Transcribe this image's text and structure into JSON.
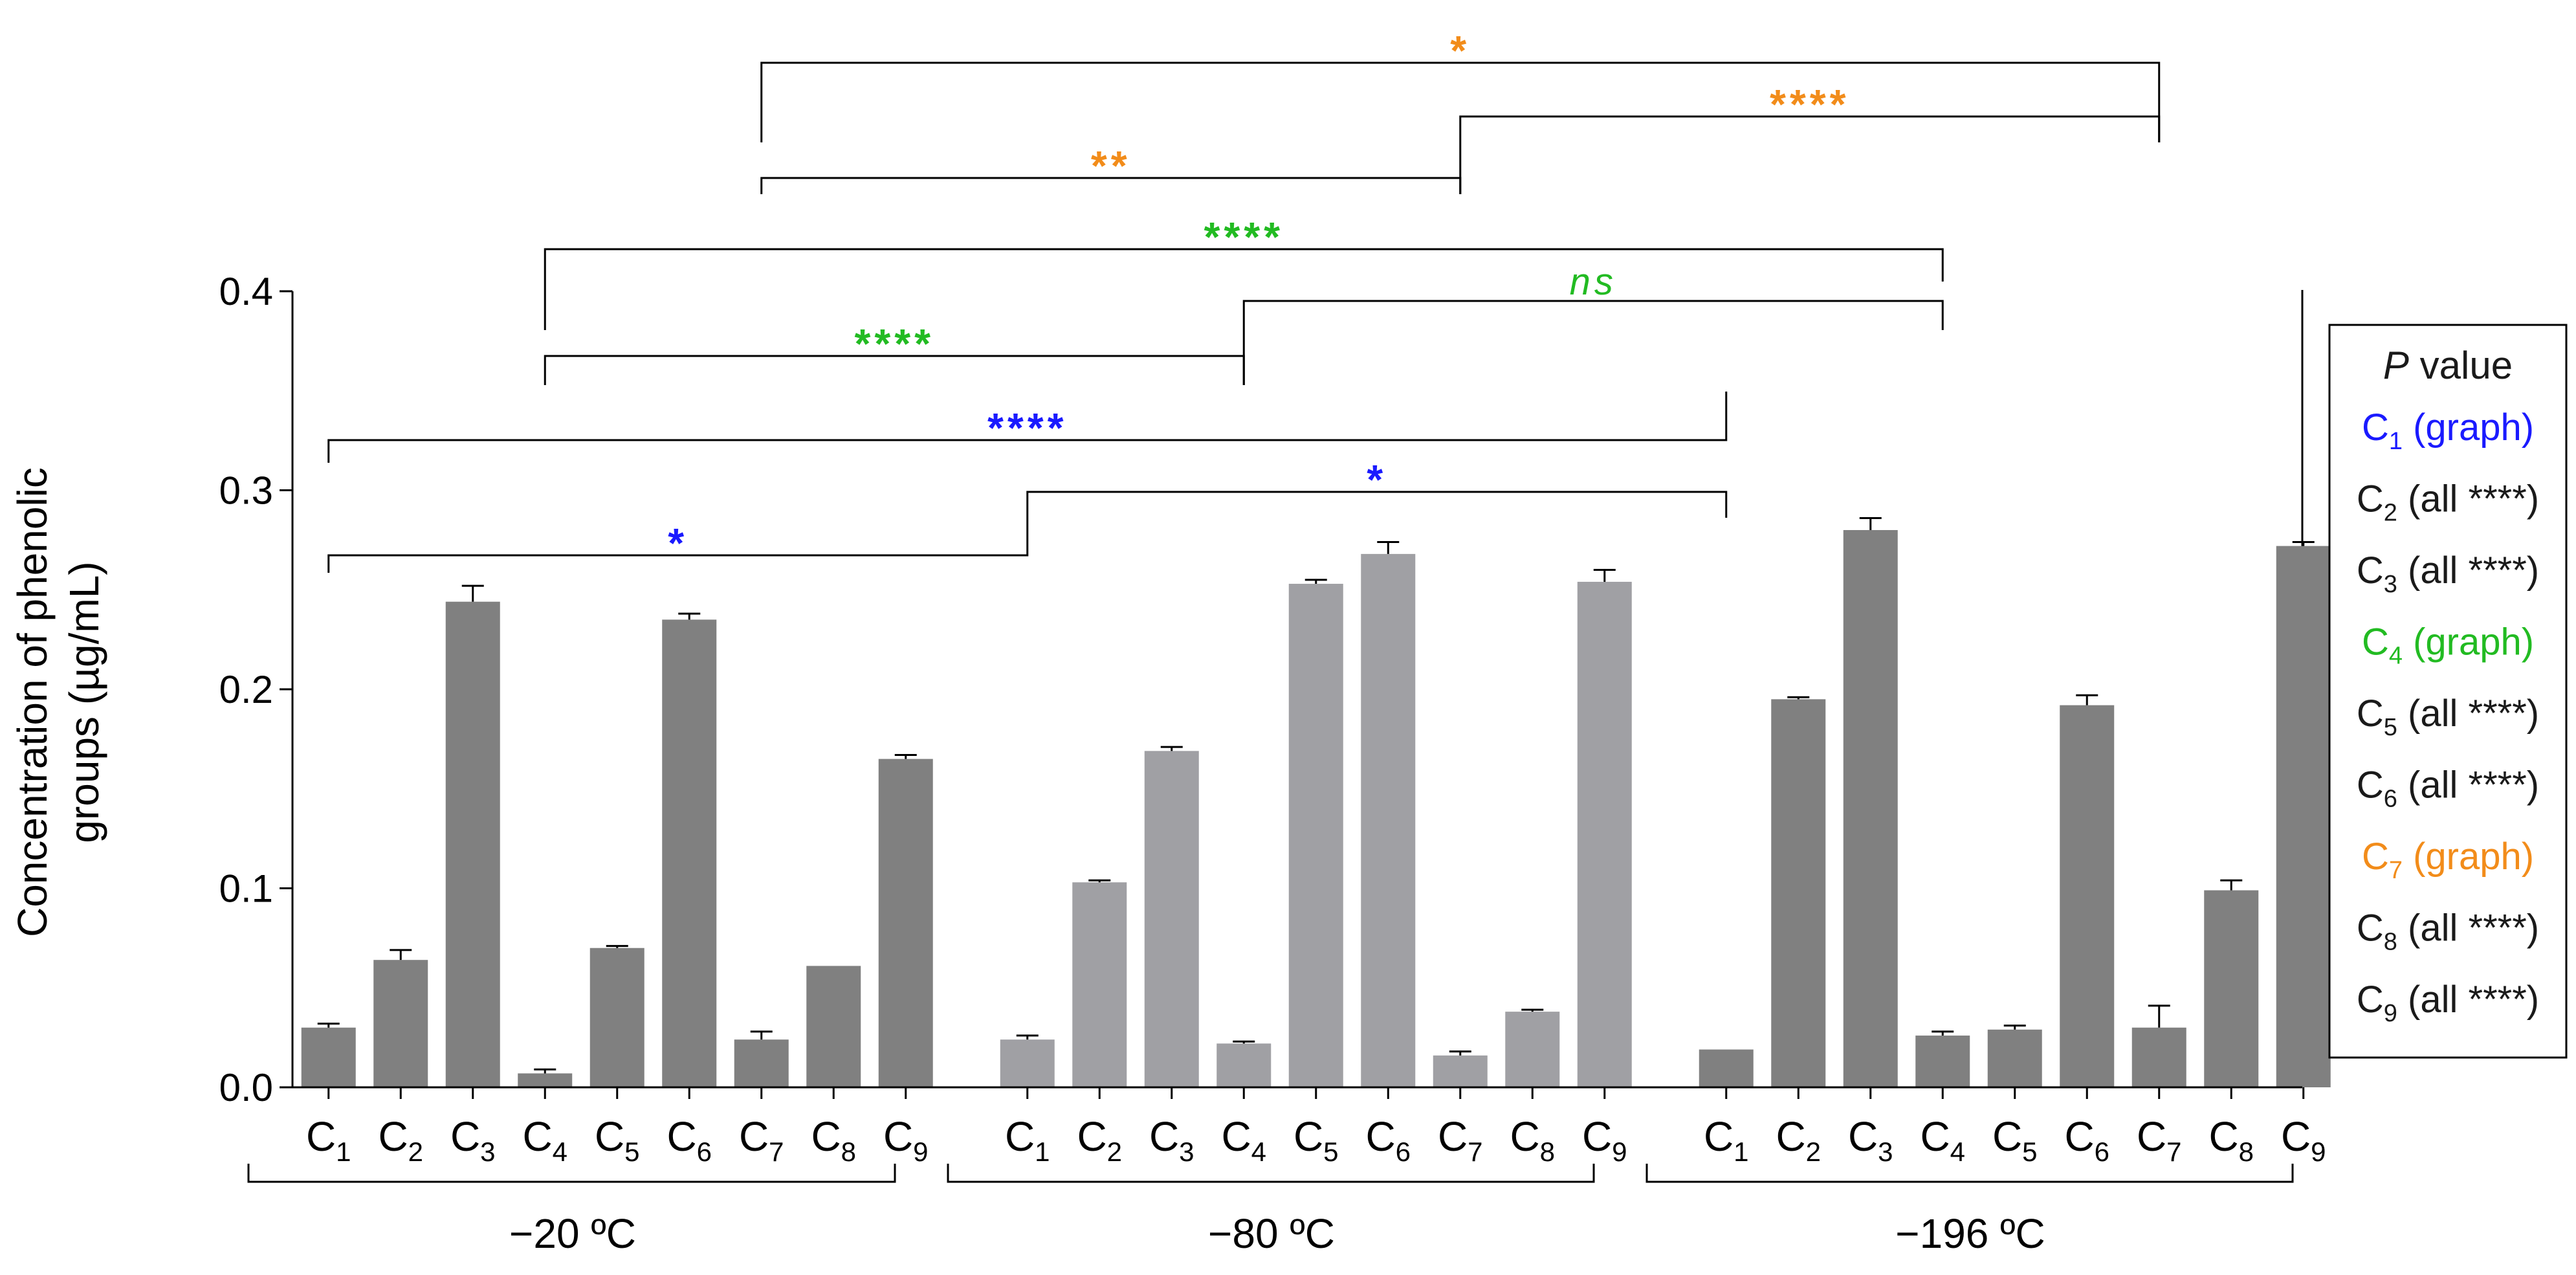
{
  "chart_data": {
    "type": "bar",
    "ylabel_lines": [
      "Concentration of phenolic",
      "groups (µg/mL)"
    ],
    "ylim": [
      0,
      0.4
    ],
    "yticks": [
      "0.0",
      "0.1",
      "0.2",
      "0.3",
      "0.4"
    ],
    "categories": [
      "C1",
      "C2",
      "C3",
      "C4",
      "C5",
      "C6",
      "C7",
      "C8",
      "C9"
    ],
    "groups": [
      {
        "name": "−20 ºC",
        "color": "#808080",
        "values": [
          0.03,
          0.064,
          0.244,
          0.007,
          0.07,
          0.235,
          0.024,
          0.061,
          0.165
        ],
        "errors": [
          0.002,
          0.005,
          0.008,
          0.002,
          0.001,
          0.003,
          0.004,
          0.0,
          0.002
        ]
      },
      {
        "name": "−80 ºC",
        "color": "#a0a0a4",
        "values": [
          0.024,
          0.103,
          0.169,
          0.022,
          0.253,
          0.268,
          0.016,
          0.038,
          0.254
        ],
        "errors": [
          0.002,
          0.001,
          0.002,
          0.001,
          0.002,
          0.006,
          0.002,
          0.001,
          0.006
        ]
      },
      {
        "name": "−196 ºC",
        "color": "#808080",
        "values": [
          0.019,
          0.195,
          0.28,
          0.026,
          0.029,
          0.192,
          0.03,
          0.099,
          0.272
        ],
        "errors": [
          0.0,
          0.001,
          0.006,
          0.002,
          0.002,
          0.005,
          0.011,
          0.005,
          0.002
        ]
      }
    ],
    "significance": [
      {
        "from_group": 0,
        "to_group": 1,
        "category": 0,
        "label": "*",
        "color": "#1a1aff",
        "italic": false
      },
      {
        "from_group": 1,
        "to_group": 2,
        "category": 0,
        "label": "*",
        "color": "#1a1aff",
        "italic": false
      },
      {
        "from_group": 0,
        "to_group": 2,
        "category": 0,
        "label": "****",
        "color": "#1a1aff",
        "italic": false
      },
      {
        "from_group": 0,
        "to_group": 1,
        "category": 3,
        "label": "****",
        "color": "#22bb22",
        "italic": false
      },
      {
        "from_group": 1,
        "to_group": 2,
        "category": 3,
        "label": "ns",
        "color": "#22bb22",
        "italic": true
      },
      {
        "from_group": 0,
        "to_group": 2,
        "category": 3,
        "label": "****",
        "color": "#22bb22",
        "italic": false
      },
      {
        "from_group": 0,
        "to_group": 1,
        "category": 6,
        "label": "**",
        "color": "#f28c1a",
        "italic": false
      },
      {
        "from_group": 1,
        "to_group": 2,
        "category": 6,
        "label": "****",
        "color": "#f28c1a",
        "italic": false
      },
      {
        "from_group": 0,
        "to_group": 2,
        "category": 6,
        "label": "*",
        "color": "#f28c1a",
        "italic": false
      }
    ]
  },
  "legend": {
    "title_italic": "P",
    "title_rest": " value",
    "entries": [
      {
        "base": "C",
        "sub": "1",
        "text": " (graph)",
        "color": "#1a1aff"
      },
      {
        "base": "C",
        "sub": "2",
        "text": " (all ****)",
        "color": "#1a1a1a"
      },
      {
        "base": "C",
        "sub": "3",
        "text": " (all ****)",
        "color": "#1a1a1a"
      },
      {
        "base": "C",
        "sub": "4",
        "text": " (graph)",
        "color": "#22bb22"
      },
      {
        "base": "C",
        "sub": "5",
        "text": " (all ****)",
        "color": "#1a1a1a"
      },
      {
        "base": "C",
        "sub": "6",
        "text": " (all ****)",
        "color": "#1a1a1a"
      },
      {
        "base": "C",
        "sub": "7",
        "text": " (graph)",
        "color": "#f28c1a"
      },
      {
        "base": "C",
        "sub": "8",
        "text": " (all ****)",
        "color": "#1a1a1a"
      },
      {
        "base": "C",
        "sub": "9",
        "text": " (all ****)",
        "color": "#1a1a1a"
      }
    ]
  }
}
